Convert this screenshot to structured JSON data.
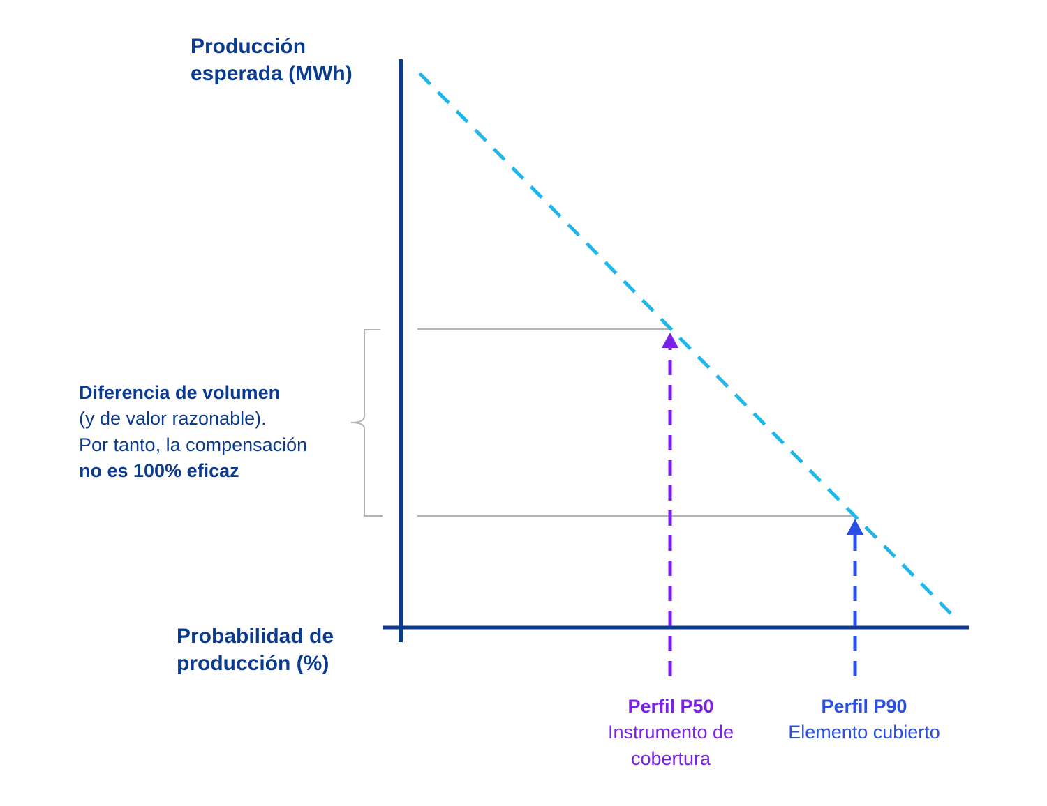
{
  "colors": {
    "axis": "#0b3b8f",
    "diagonal": "#1fb7ea",
    "p50": "#7a20e8",
    "p90": "#2a4fe6",
    "guide": "#b4b4b4"
  },
  "axes": {
    "y_title_line1": "Producción",
    "y_title_line2": "esperada (MWh)",
    "x_title_line1": "Probabilidad de",
    "x_title_line2": "producción (%)"
  },
  "note": {
    "line1": "Diferencia de volumen",
    "line2": "(y de valor razonable).",
    "line3": "Por tanto, la compensación",
    "line4": "no es 100% eficaz"
  },
  "profiles": [
    {
      "name": "Perfil P50",
      "desc_line1": "Instrumento de",
      "desc_line2": "cobertura"
    },
    {
      "name": "Perfil P90",
      "desc_line1": "Elemento cubierto",
      "desc_line2": ""
    }
  ]
}
